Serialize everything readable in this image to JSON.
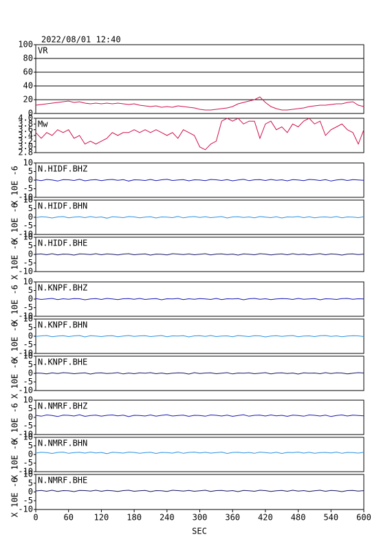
{
  "chart_data": {
    "type": "line",
    "title": "2022/08/01 12:40",
    "xlabel": "SEC",
    "xlim": [
      0,
      600
    ],
    "xticks": [
      0,
      60,
      120,
      180,
      240,
      300,
      360,
      420,
      480,
      540,
      600
    ],
    "x": [
      0,
      10,
      20,
      30,
      40,
      50,
      60,
      70,
      80,
      90,
      100,
      110,
      120,
      130,
      140,
      150,
      160,
      170,
      180,
      190,
      200,
      210,
      220,
      230,
      240,
      250,
      260,
      270,
      280,
      290,
      300,
      310,
      320,
      330,
      340,
      350,
      360,
      370,
      380,
      390,
      400,
      410,
      420,
      430,
      440,
      450,
      460,
      470,
      480,
      490,
      500,
      510,
      520,
      530,
      540,
      550,
      560,
      570,
      580,
      590,
      600
    ],
    "panels": [
      {
        "label": "VR",
        "color": "#d0104a",
        "ylim": [
          0,
          100
        ],
        "yticks": [
          0,
          20,
          40,
          60,
          80,
          100
        ],
        "grid": true,
        "values": [
          12,
          13,
          14,
          15,
          16,
          17,
          18,
          16,
          17,
          15,
          14,
          15,
          14,
          15,
          14,
          15,
          14,
          13,
          14,
          12,
          11,
          10,
          11,
          9,
          10,
          9,
          11,
          10,
          9,
          8,
          6,
          5,
          5,
          6,
          7,
          8,
          10,
          14,
          16,
          18,
          20,
          24,
          16,
          10,
          7,
          5,
          5,
          6,
          7,
          8,
          10,
          11,
          12,
          12,
          13,
          14,
          14,
          16,
          17,
          12,
          10
        ]
      },
      {
        "label": "Mw",
        "color": "#d0104a",
        "ylim": [
          2.8,
          4.0
        ],
        "yticks": [
          2.8,
          {
            "value": 3,
            "label": "3.0"
          },
          3.2,
          3.4,
          3.6,
          3.8,
          {
            "value": 4,
            "label": "4.0"
          }
        ],
        "grid": false,
        "values": [
          3.5,
          3.3,
          3.5,
          3.4,
          3.6,
          3.5,
          3.6,
          3.3,
          3.4,
          3.1,
          3.2,
          3.1,
          3.2,
          3.3,
          3.5,
          3.4,
          3.5,
          3.5,
          3.6,
          3.5,
          3.6,
          3.5,
          3.6,
          3.5,
          3.4,
          3.5,
          3.3,
          3.6,
          3.5,
          3.4,
          3.0,
          2.9,
          3.1,
          3.2,
          3.9,
          4.0,
          3.9,
          4.0,
          3.8,
          3.9,
          3.9,
          3.3,
          3.8,
          3.9,
          3.6,
          3.7,
          3.5,
          3.8,
          3.7,
          3.9,
          4.0,
          3.8,
          3.9,
          3.4,
          3.6,
          3.7,
          3.8,
          3.6,
          3.5,
          3.1,
          3.6
        ]
      },
      {
        "label": "N.HIDF.BHZ",
        "ylabel": "X 10E -6",
        "color": "#1414b4",
        "ylim": [
          -10,
          10
        ],
        "yticks": [
          -10,
          -5,
          0,
          5,
          10
        ],
        "grid": false,
        "values": [
          0.2,
          -0.3,
          0.4,
          0.1,
          -0.5,
          0.3,
          0.2,
          -0.2,
          0.5,
          -0.4,
          0.1,
          0.3,
          -0.3,
          0.2,
          0.4,
          -0.1,
          0.3,
          -0.5,
          0.2,
          0.1,
          -0.2,
          0.4,
          -0.3,
          0.2,
          0.5,
          -0.2,
          0.1,
          0.3,
          -0.4,
          0.2,
          0.1,
          -0.3,
          0.4,
          0.2,
          -0.2,
          0.3,
          -0.4,
          0.1,
          0.5,
          -0.3,
          0.2,
          0.3,
          -0.2,
          0.4,
          -0.1,
          0.2,
          -0.4,
          0.3,
          0.1,
          -0.3,
          0.4,
          0.2,
          -0.2,
          0.3,
          -0.5,
          0.1,
          0.4,
          -0.2,
          0.3,
          0.1,
          -0.1
        ]
      },
      {
        "label": "N.HIDF.BHN",
        "ylabel": "X 10E -6",
        "color": "#2890e0",
        "ylim": [
          -10,
          10
        ],
        "yticks": [
          -10,
          -5,
          0,
          5,
          10
        ],
        "grid": false,
        "values": [
          -0.2,
          0.3,
          0.1,
          -0.4,
          0.2,
          0.4,
          -0.3,
          0.1,
          0.3,
          -0.2,
          0.4,
          -0.1,
          0.2,
          -0.5,
          0.3,
          0.1,
          -0.2,
          0.4,
          0.2,
          -0.3,
          0.1,
          0.3,
          -0.4,
          0.2,
          0.1,
          -0.2,
          0.5,
          -0.3,
          0.2,
          0.4,
          -0.1,
          0.3,
          -0.2,
          0.1,
          0.4,
          -0.4,
          0.2,
          0.3,
          -0.1,
          0.2,
          -0.3,
          0.4,
          0.1,
          -0.2,
          0.3,
          -0.4,
          0.2,
          0.1,
          0.4,
          -0.2,
          0.3,
          -0.3,
          0.1,
          0.2,
          -0.1,
          0.4,
          -0.3,
          0.2,
          0.1,
          -0.2,
          0.3
        ]
      },
      {
        "label": "N.HIDF.BHE",
        "ylabel": "X 10E -6",
        "color": "#101060",
        "ylim": [
          -10,
          10
        ],
        "yticks": [
          -10,
          -5,
          0,
          5,
          10
        ],
        "grid": false,
        "values": [
          0.1,
          0.3,
          -0.2,
          0.4,
          -0.3,
          0.2,
          0.1,
          -0.4,
          0.3,
          0.2,
          -0.1,
          0.4,
          -0.2,
          0.3,
          0.1,
          -0.3,
          0.2,
          0.4,
          -0.2,
          0.1,
          0.3,
          -0.4,
          0.2,
          0.1,
          -0.3,
          0.4,
          0.2,
          -0.1,
          0.3,
          -0.2,
          0.1,
          0.4,
          -0.3,
          0.2,
          0.3,
          -0.1,
          0.2,
          -0.4,
          0.3,
          0.1,
          -0.2,
          0.4,
          0.2,
          -0.3,
          0.1,
          0.3,
          -0.2,
          0.4,
          -0.1,
          0.2,
          -0.3,
          0.1,
          0.4,
          -0.2,
          0.3,
          0.1,
          -0.4,
          0.2,
          0.3,
          -0.1,
          0.2
        ]
      },
      {
        "label": "N.KNPF.BHZ",
        "ylabel": "X 10E -6",
        "color": "#1414b4",
        "ylim": [
          -10,
          10
        ],
        "yticks": [
          -10,
          -5,
          0,
          5,
          10
        ],
        "grid": false,
        "values": [
          0.3,
          -0.2,
          0.1,
          0.4,
          -0.3,
          0.2,
          -0.1,
          0.3,
          0.2,
          -0.4,
          0.1,
          0.3,
          -0.2,
          0.4,
          0.1,
          -0.3,
          0.2,
          0.3,
          -0.1,
          0.4,
          -0.2,
          0.1,
          0.3,
          -0.4,
          0.2,
          0.1,
          0.4,
          -0.3,
          0.2,
          -0.1,
          0.3,
          0.1,
          -0.2,
          0.4,
          -0.3,
          0.2,
          0.1,
          0.3,
          -0.4,
          0.2,
          0.4,
          -0.1,
          0.2,
          -0.3,
          0.1,
          0.3,
          0.2,
          -0.2,
          0.4,
          -0.1,
          0.1,
          0.3,
          -0.4,
          0.2,
          0.1,
          -0.2,
          0.3,
          0.4,
          -0.1,
          0.2,
          0.1
        ]
      },
      {
        "label": "N.KNPF.BHN",
        "ylabel": "X 10E -6",
        "color": "#2890e0",
        "ylim": [
          -10,
          10
        ],
        "yticks": [
          -10,
          -5,
          0,
          5,
          10
        ],
        "grid": false,
        "values": [
          -0.1,
          0.2,
          0.4,
          -0.3,
          0.1,
          0.3,
          -0.2,
          0.2,
          0.4,
          -0.4,
          0.3,
          0.1,
          -0.2,
          0.2,
          0.3,
          -0.3,
          0.1,
          0.4,
          -0.1,
          0.2,
          0.3,
          -0.2,
          0.1,
          0.4,
          -0.3,
          0.2,
          0.1,
          0.3,
          -0.4,
          0.2,
          0.3,
          -0.1,
          0.4,
          -0.2,
          0.1,
          0.2,
          -0.3,
          0.4,
          0.1,
          -0.2,
          0.3,
          0.2,
          -0.4,
          0.1,
          0.3,
          -0.1,
          0.2,
          0.4,
          -0.3,
          0.1,
          0.2,
          -0.2,
          0.3,
          0.4,
          -0.1,
          0.2,
          -0.3,
          0.1,
          0.3,
          0.2,
          -0.2
        ]
      },
      {
        "label": "N.KNPF.BHE",
        "ylabel": "X 10E -6",
        "color": "#101060",
        "ylim": [
          -10,
          10
        ],
        "yticks": [
          -10,
          -5,
          0,
          5,
          10
        ],
        "grid": false,
        "values": [
          0.2,
          0.1,
          -0.3,
          0.3,
          -0.1,
          0.4,
          0.2,
          -0.2,
          0.1,
          0.3,
          -0.4,
          0.2,
          0.3,
          -0.1,
          0.1,
          0.4,
          -0.3,
          0.2,
          -0.2,
          0.3,
          0.1,
          0.4,
          -0.2,
          0.2,
          -0.3,
          0.1,
          0.3,
          0.2,
          -0.4,
          0.4,
          -0.1,
          0.2,
          0.3,
          -0.2,
          0.1,
          0.4,
          -0.3,
          0.2,
          0.1,
          0.3,
          -0.2,
          0.1,
          0.4,
          -0.3,
          0.2,
          0.3,
          -0.1,
          0.2,
          -0.4,
          0.3,
          0.1,
          0.2,
          -0.2,
          0.4,
          -0.1,
          0.3,
          0.2,
          -0.3,
          0.1,
          0.4,
          0.2
        ]
      },
      {
        "label": "N.NMRF.BHZ",
        "ylabel": "X 10E -6",
        "color": "#1414b4",
        "ylim": [
          -10,
          10
        ],
        "yticks": [
          -10,
          -5,
          0,
          5,
          10
        ],
        "grid": false,
        "values": [
          1.2,
          0.7,
          1.4,
          1.1,
          0.5,
          1.3,
          1.2,
          0.8,
          1.5,
          0.6,
          1.1,
          1.3,
          0.7,
          1.2,
          1.4,
          0.9,
          1.3,
          0.5,
          1.2,
          1.1,
          0.8,
          1.4,
          0.7,
          1.2,
          1.5,
          0.8,
          1.1,
          1.3,
          0.6,
          1.2,
          1.1,
          0.7,
          1.4,
          1.2,
          0.8,
          1.3,
          0.6,
          1.1,
          1.5,
          0.7,
          1.2,
          1.3,
          0.8,
          1.4,
          0.9,
          1.2,
          0.6,
          1.3,
          1.1,
          0.7,
          1.4,
          1.2,
          0.8,
          1.3,
          0.5,
          1.1,
          1.4,
          0.8,
          1.3,
          1.1,
          0.9
        ]
      },
      {
        "label": "N.NMRF.BHN",
        "ylabel": "X 10E -6",
        "color": "#2890e0",
        "ylim": [
          -10,
          10
        ],
        "yticks": [
          -10,
          -5,
          0,
          5,
          10
        ],
        "grid": false,
        "values": [
          0.8,
          1.3,
          1.1,
          0.6,
          1.2,
          1.4,
          0.7,
          1.1,
          1.3,
          0.8,
          1.4,
          0.9,
          1.2,
          0.5,
          1.3,
          1.1,
          0.8,
          1.4,
          1.2,
          0.7,
          1.1,
          1.3,
          0.6,
          1.2,
          1.1,
          0.8,
          1.5,
          0.7,
          1.2,
          1.4,
          0.9,
          1.3,
          0.8,
          1.1,
          1.4,
          0.6,
          1.2,
          1.3,
          0.9,
          1.2,
          0.7,
          1.4,
          1.1,
          0.8,
          1.3,
          0.6,
          1.2,
          1.1,
          1.4,
          0.8,
          1.3,
          0.7,
          1.1,
          1.2,
          0.9,
          1.4,
          0.7,
          1.2,
          1.1,
          0.8,
          1.3
        ]
      },
      {
        "label": "N.NMRF.BHE",
        "ylabel": "X 10E -6",
        "color": "#101060",
        "ylim": [
          -10,
          10
        ],
        "yticks": [
          -10,
          -5,
          0,
          5,
          10
        ],
        "grid": false,
        "values": [
          0.6,
          0.9,
          0.4,
          1.0,
          0.3,
          0.8,
          0.7,
          0.2,
          0.9,
          0.8,
          0.5,
          1.0,
          0.4,
          0.9,
          0.7,
          0.3,
          0.8,
          1.0,
          0.4,
          0.7,
          0.9,
          0.2,
          0.8,
          0.7,
          0.3,
          1.0,
          0.8,
          0.5,
          0.9,
          0.4,
          0.7,
          1.0,
          0.3,
          0.8,
          0.9,
          0.5,
          0.8,
          0.2,
          0.9,
          0.7,
          0.4,
          1.0,
          0.8,
          0.3,
          0.7,
          0.9,
          0.4,
          1.0,
          0.5,
          0.8,
          0.3,
          0.7,
          1.0,
          0.4,
          0.9,
          0.7,
          0.2,
          0.8,
          0.9,
          0.5,
          0.8
        ]
      }
    ]
  }
}
